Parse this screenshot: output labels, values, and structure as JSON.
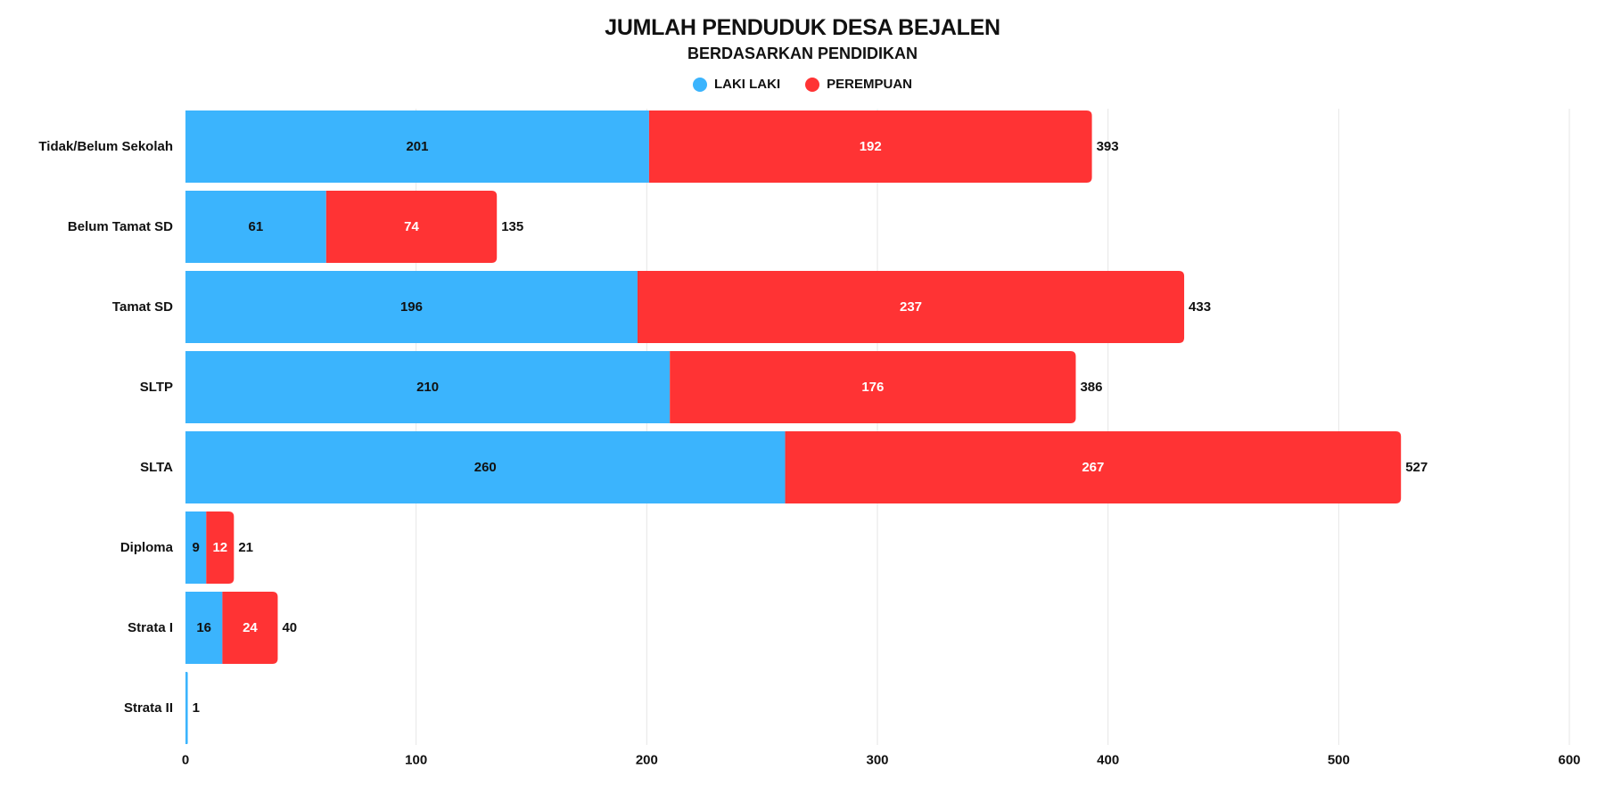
{
  "chart_data": {
    "type": "bar",
    "orientation": "horizontal",
    "stacked": true,
    "title": "JUMLAH PENDUDUK DESA BEJALEN",
    "subtitle": "BERDASARKAN PENDIDIKAN",
    "categories": [
      "Tidak/Belum Sekolah",
      "Belum Tamat SD",
      "Tamat SD",
      "SLTP",
      "SLTA",
      "Diploma",
      "Strata I",
      "Strata II"
    ],
    "series": [
      {
        "name": "LAKI LAKI",
        "color": "#3bb4fd",
        "values": [
          201,
          61,
          196,
          210,
          260,
          9,
          16,
          1
        ]
      },
      {
        "name": "PEREMPUAN",
        "color": "#ff3334",
        "values": [
          192,
          74,
          237,
          176,
          267,
          12,
          24,
          0
        ]
      }
    ],
    "totals": [
      393,
      135,
      433,
      386,
      527,
      21,
      40,
      1
    ],
    "xlim": [
      0,
      600
    ],
    "xticks": [
      0,
      100,
      200,
      300,
      400,
      500,
      600
    ],
    "grid": true,
    "legend_position": "top-center"
  }
}
